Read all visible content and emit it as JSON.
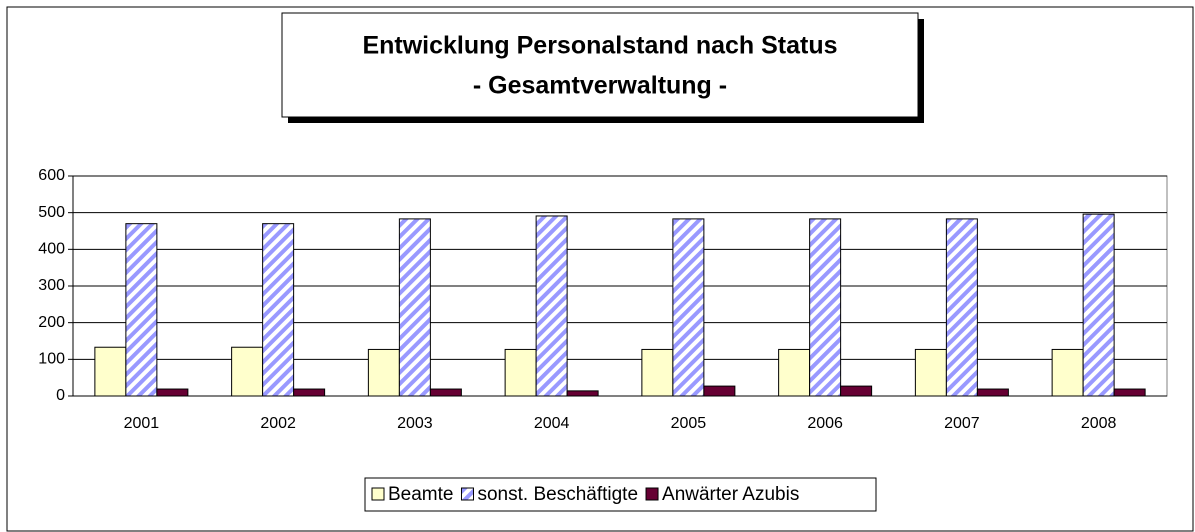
{
  "chart_data": {
    "type": "bar",
    "title": "Entwicklung Personalstand nach Status",
    "subtitle": "- Gesamtverwaltung -",
    "categories": [
      "2001",
      "2002",
      "2003",
      "2004",
      "2005",
      "2006",
      "2007",
      "2008"
    ],
    "series": [
      {
        "name": "Beamte",
        "color": "#ffffcc",
        "values": [
          133,
          133,
          127,
          127,
          127,
          127,
          127,
          127
        ]
      },
      {
        "name": "sonst. Beschäftigte",
        "color": "#9999ff",
        "pattern": "hatch",
        "values": [
          470,
          470,
          483,
          491,
          483,
          483,
          483,
          496
        ]
      },
      {
        "name": "Anwärter Azubis",
        "color": "#660033",
        "values": [
          19,
          19,
          19,
          14,
          27,
          27,
          19,
          19
        ]
      }
    ],
    "ylim": [
      0,
      600
    ],
    "yticks": [
      0,
      100,
      200,
      300,
      400,
      500,
      600
    ],
    "grid": true,
    "legend": "bottom"
  }
}
